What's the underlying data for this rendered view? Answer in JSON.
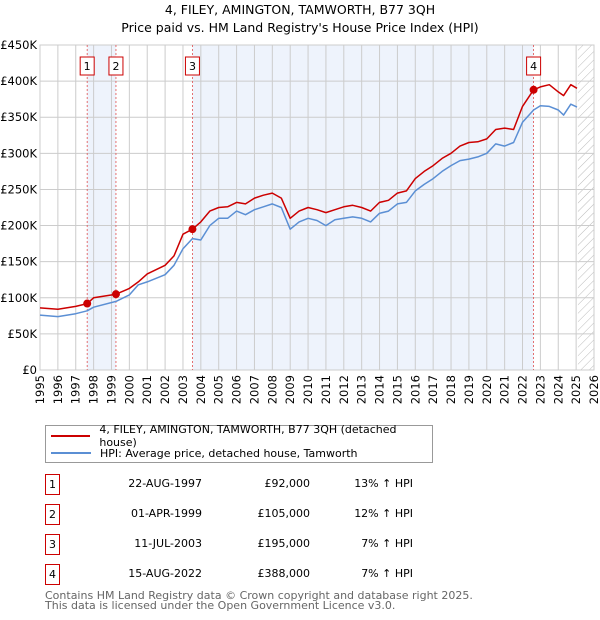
{
  "chart_data": {
    "type": "line",
    "title": "4, FILEY, AMINGTON, TAMWORTH, B77 3QH",
    "subtitle": "Price paid vs. HM Land Registry's House Price Index (HPI)",
    "xlabel": "",
    "ylabel": "",
    "xlim": [
      1995,
      2026
    ],
    "ylim": [
      0,
      450000
    ],
    "y_ticks": [
      0,
      50000,
      100000,
      150000,
      200000,
      250000,
      300000,
      350000,
      400000,
      450000
    ],
    "y_tick_labels": [
      "£0",
      "£50K",
      "£100K",
      "£150K",
      "£200K",
      "£250K",
      "£300K",
      "£350K",
      "£400K",
      "£450K"
    ],
    "x_ticks": [
      "1995",
      "1996",
      "1997",
      "1998",
      "1999",
      "2000",
      "2001",
      "2002",
      "2003",
      "2004",
      "2005",
      "2006",
      "2007",
      "2008",
      "2009",
      "2010",
      "2011",
      "2012",
      "2013",
      "2014",
      "2015",
      "2016",
      "2017",
      "2018",
      "2019",
      "2020",
      "2021",
      "2022",
      "2023",
      "2024",
      "2025",
      "2026"
    ],
    "grid": true,
    "forecast_hatch_from": 2025.1,
    "series": [
      {
        "name": "4, FILEY, AMINGTON, TAMWORTH, B77 3QH (detached house)",
        "color": "#cc0000",
        "x": [
          1995,
          1996,
          1997,
          1997.64,
          1998,
          1999.25,
          2000,
          2000.5,
          2001,
          2002,
          2002.5,
          2003,
          2003.53,
          2004,
          2004.5,
          2005,
          2005.5,
          2006,
          2006.5,
          2007,
          2007.5,
          2008,
          2008.5,
          2009,
          2009.5,
          2010,
          2010.5,
          2011,
          2011.5,
          2012,
          2012.5,
          2013,
          2013.5,
          2014,
          2014.5,
          2015,
          2015.5,
          2016,
          2016.5,
          2017,
          2017.5,
          2018,
          2018.5,
          2019,
          2019.5,
          2020,
          2020.5,
          2021,
          2021.5,
          2022,
          2022.62,
          2023,
          2023.5,
          2024,
          2024.3,
          2024.7,
          2025.05
        ],
        "values": [
          86000,
          84000,
          88000,
          92000,
          100000,
          105000,
          113000,
          122000,
          133000,
          145000,
          158000,
          188000,
          195000,
          205000,
          220000,
          225000,
          226000,
          232000,
          230000,
          238000,
          242000,
          245000,
          238000,
          210000,
          220000,
          225000,
          222000,
          218000,
          222000,
          226000,
          228000,
          225000,
          220000,
          232000,
          235000,
          245000,
          248000,
          265000,
          275000,
          283000,
          293000,
          300000,
          310000,
          315000,
          316000,
          320000,
          333000,
          335000,
          333000,
          365000,
          388000,
          392000,
          395000,
          385000,
          380000,
          395000,
          390000
        ]
      },
      {
        "name": "HPI: Average price, detached house, Tamworth",
        "color": "#5b8fd4",
        "x": [
          1995,
          1996,
          1997,
          1997.64,
          1998,
          1999.25,
          2000,
          2000.5,
          2001,
          2002,
          2002.5,
          2003,
          2003.53,
          2004,
          2004.5,
          2005,
          2005.5,
          2006,
          2006.5,
          2007,
          2007.5,
          2008,
          2008.5,
          2009,
          2009.5,
          2010,
          2010.5,
          2011,
          2011.5,
          2012,
          2012.5,
          2013,
          2013.5,
          2014,
          2014.5,
          2015,
          2015.5,
          2016,
          2016.5,
          2017,
          2017.5,
          2018,
          2018.5,
          2019,
          2019.5,
          2020,
          2020.5,
          2021,
          2021.5,
          2022,
          2022.62,
          2023,
          2023.5,
          2024,
          2024.3,
          2024.7,
          2025.05
        ],
        "values": [
          76000,
          74000,
          78000,
          82000,
          87000,
          95000,
          104000,
          118000,
          122000,
          132000,
          145000,
          168000,
          182000,
          180000,
          200000,
          210000,
          210000,
          220000,
          215000,
          222000,
          226000,
          230000,
          225000,
          195000,
          205000,
          210000,
          207000,
          200000,
          208000,
          210000,
          212000,
          210000,
          205000,
          217000,
          220000,
          230000,
          232000,
          248000,
          257000,
          265000,
          275000,
          283000,
          290000,
          292000,
          295000,
          300000,
          313000,
          310000,
          315000,
          343000,
          360000,
          366000,
          365000,
          360000,
          353000,
          368000,
          364000
        ]
      }
    ],
    "sales": [
      {
        "n": "1",
        "x": 1997.64,
        "date": "22-AUG-1997",
        "price_value": 92000,
        "price": "£92,000",
        "hpi": "13% ↑ HPI"
      },
      {
        "n": "2",
        "x": 1999.25,
        "date": "01-APR-1999",
        "price_value": 105000,
        "price": "£105,000",
        "hpi": "12% ↑ HPI"
      },
      {
        "n": "3",
        "x": 2003.53,
        "date": "11-JUL-2003",
        "price_value": 195000,
        "price": "£195,000",
        "hpi": "7% ↑ HPI"
      },
      {
        "n": "4",
        "x": 2022.62,
        "date": "15-AUG-2022",
        "price_value": 388000,
        "price": "£388,000",
        "hpi": "7% ↑ HPI"
      }
    ],
    "legend_position": "bottom"
  },
  "footer": {
    "line1": "Contains HM Land Registry data © Crown copyright and database right 2025.",
    "line2": "This data is licensed under the Open Government Licence v3.0."
  }
}
